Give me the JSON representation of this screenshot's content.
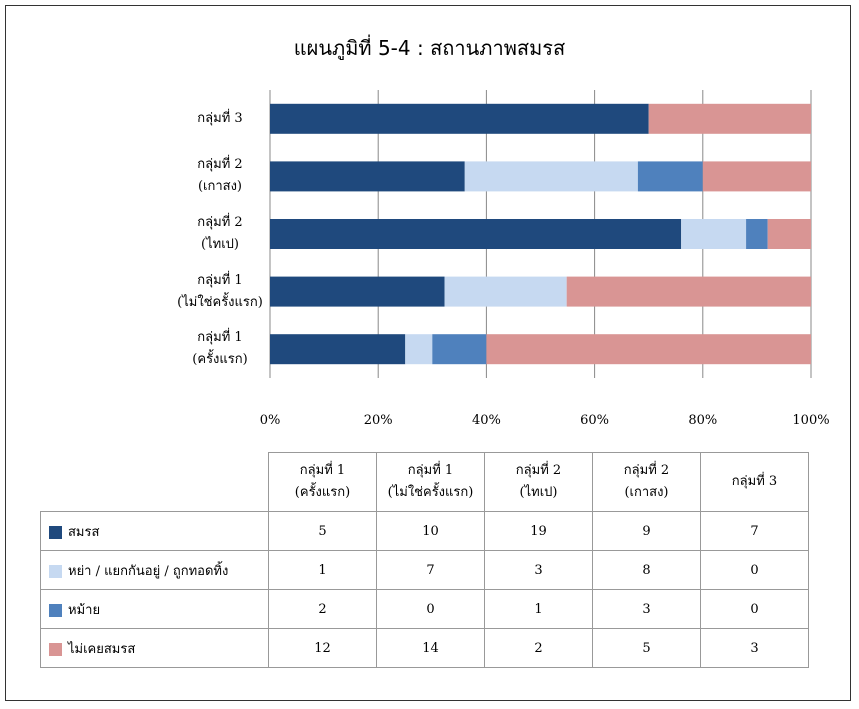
{
  "chart_data": {
    "type": "bar",
    "orientation": "horizontal",
    "stacked": "percent",
    "title": "แผนภูมิที่ 5-4 : สถานภาพสมรส",
    "categories": [
      "กลุ่มที่ 1\n(ครั้งแรก)",
      "กลุ่มที่ 1\n(ไม่ใช่ครั้งแรก)",
      "กลุ่มที่ 2\n(ไทเป)",
      "กลุ่มที่ 2\n(เกาสง)",
      "กลุ่มที่ 3"
    ],
    "series": [
      {
        "name": "สมรส",
        "color": "#1f497d",
        "values": [
          5,
          10,
          19,
          9,
          7
        ]
      },
      {
        "name": "หย่า / แยกกันอยู่ / ถูกทอดทิ้ง",
        "color": "#c6d9f1",
        "values": [
          1,
          7,
          3,
          8,
          0
        ]
      },
      {
        "name": "หม้าย",
        "color": "#4f81bd",
        "values": [
          2,
          0,
          1,
          3,
          0
        ]
      },
      {
        "name": "ไม่เคยสมรส",
        "color": "#d99594",
        "values": [
          12,
          14,
          2,
          5,
          3
        ]
      }
    ],
    "xlim": [
      0,
      100
    ],
    "xticks": [
      {
        "value": 0,
        "label": "0%"
      },
      {
        "value": 20,
        "label": "20%"
      },
      {
        "value": 40,
        "label": "40%"
      },
      {
        "value": 60,
        "label": "60%"
      },
      {
        "value": 80,
        "label": "80%"
      },
      {
        "value": 100,
        "label": "100%"
      }
    ],
    "grid": true
  }
}
